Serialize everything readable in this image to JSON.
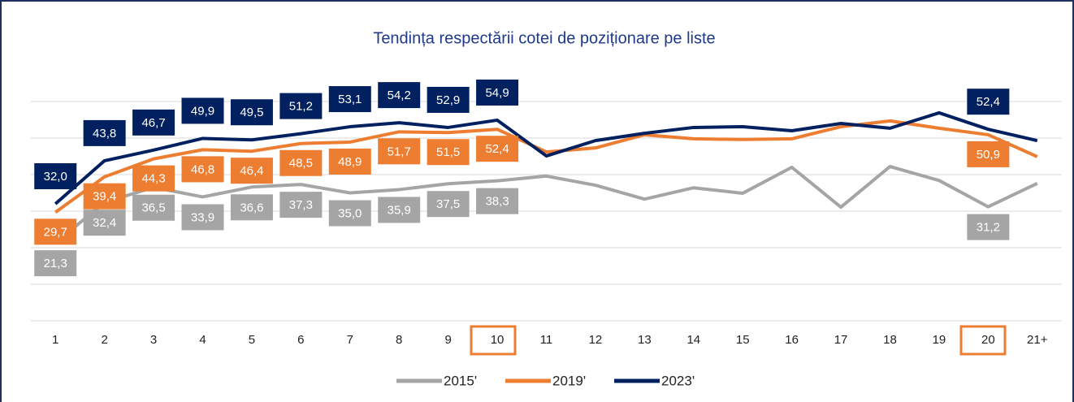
{
  "chart_data": {
    "type": "line",
    "title": "Tendința respectării cotei de poziționare pe liste",
    "categories": [
      "1",
      "2",
      "3",
      "4",
      "5",
      "6",
      "7",
      "8",
      "9",
      "10",
      "11",
      "12",
      "13",
      "14",
      "15",
      "16",
      "17",
      "18",
      "19",
      "20",
      "21+"
    ],
    "ylim": [
      0,
      60
    ],
    "yticks": [
      0,
      10,
      20,
      30,
      40,
      50,
      60
    ],
    "grid": true,
    "legend": "bottom",
    "series": [
      {
        "name": "2015'",
        "color": "#a5a5a5",
        "values": [
          21.3,
          32.4,
          36.5,
          33.9,
          36.6,
          37.3,
          35.0,
          35.9,
          37.5,
          38.3,
          39.6,
          37.1,
          33.3,
          36.4,
          34.9,
          42.0,
          31.1,
          42.2,
          38.4,
          31.2,
          37.6
        ],
        "value_labels": [
          "21,3",
          "32,4",
          "36,5",
          "33,9",
          "36,6",
          "37,3",
          "35,0",
          "35,9",
          "37,5",
          "38,3",
          null,
          null,
          null,
          null,
          null,
          null,
          null,
          null,
          null,
          "31,2",
          null
        ]
      },
      {
        "name": "2019'",
        "color": "#ed7d31",
        "values": [
          29.7,
          39.4,
          44.3,
          46.8,
          46.4,
          48.5,
          48.9,
          51.7,
          51.5,
          52.4,
          46.2,
          47.3,
          50.9,
          49.8,
          49.6,
          49.8,
          53.1,
          54.7,
          52.7,
          50.9,
          44.9
        ],
        "value_labels": [
          "29,7",
          "39,4",
          "44,3",
          "46,8",
          "46,4",
          "48,5",
          "48,9",
          "51,7",
          "51,5",
          "52,4",
          null,
          null,
          null,
          null,
          null,
          null,
          null,
          null,
          null,
          "50,9",
          null
        ]
      },
      {
        "name": "2023'",
        "color": "#002060",
        "values": [
          32.0,
          43.8,
          46.7,
          49.9,
          49.5,
          51.2,
          53.1,
          54.2,
          52.9,
          54.9,
          45.1,
          49.3,
          51.3,
          52.9,
          53.1,
          52.0,
          54.0,
          52.7,
          56.9,
          52.4,
          49.3
        ],
        "value_labels": [
          "32,0",
          "43,8",
          "46,7",
          "49,9",
          "49,5",
          "51,2",
          "53,1",
          "54,2",
          "52,9",
          "54,9",
          null,
          null,
          null,
          null,
          null,
          null,
          null,
          null,
          null,
          "52,4",
          null
        ]
      }
    ]
  }
}
